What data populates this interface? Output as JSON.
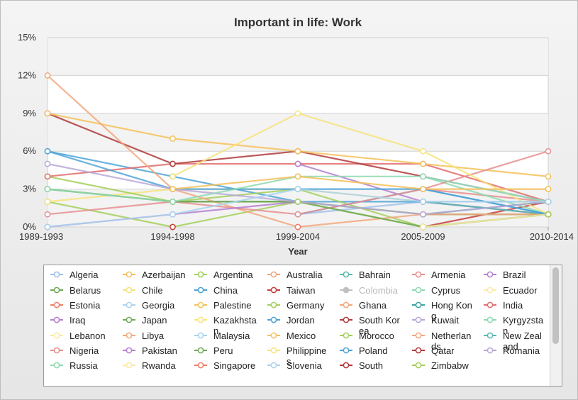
{
  "chart_data": {
    "type": "line",
    "title": "Important in life: Work",
    "xlabel": "Year",
    "ylabel": "",
    "ylim": [
      0,
      15
    ],
    "yticks": [
      "0%",
      "3%",
      "6%",
      "9%",
      "12%",
      "15%"
    ],
    "categories": [
      "1989-1993",
      "1994-1998",
      "1999-2004",
      "2005-2009",
      "2010-2014"
    ],
    "legend_position": "bottom",
    "grid": true,
    "series": [
      {
        "name": "Algeria",
        "color": "#9ec0ea",
        "values": [
          null,
          null,
          1,
          2,
          2
        ]
      },
      {
        "name": "Azerbaijan",
        "color": "#f4c15a",
        "values": [
          null,
          2,
          null,
          null,
          1
        ]
      },
      {
        "name": "Argentina",
        "color": "#a3cf5b",
        "values": [
          2,
          0,
          2,
          1,
          1
        ]
      },
      {
        "name": "Australia",
        "color": "#f2a77c",
        "values": [
          null,
          2,
          null,
          1,
          1
        ]
      },
      {
        "name": "Bahrain",
        "color": "#58b9b0",
        "values": [
          null,
          null,
          null,
          null,
          1
        ]
      },
      {
        "name": "Armenia",
        "color": "#e88e8e",
        "values": [
          null,
          4,
          null,
          3,
          2
        ]
      },
      {
        "name": "Brazil",
        "color": "#b57fd0",
        "values": [
          0,
          1,
          null,
          2,
          1
        ]
      },
      {
        "name": "Belarus",
        "color": "#6faa57",
        "values": [
          3,
          2,
          2,
          null,
          2
        ]
      },
      {
        "name": "Chile",
        "color": "#f6e37c",
        "values": [
          2,
          3,
          3,
          2,
          1
        ]
      },
      {
        "name": "China",
        "color": "#4da3d8",
        "values": [
          6,
          4,
          2,
          2,
          1
        ]
      },
      {
        "name": "Taiwan",
        "color": "#c53d3d",
        "values": [
          null,
          0,
          null,
          0,
          2
        ]
      },
      {
        "name": "Colombia",
        "color": "#c0c0c0",
        "disabled": true,
        "values": [
          null,
          null,
          null,
          null,
          null
        ]
      },
      {
        "name": "Cyprus",
        "color": "#8fd9b0",
        "values": [
          null,
          null,
          null,
          4,
          1
        ]
      },
      {
        "name": "Ecuador",
        "color": "#fbe9a8",
        "values": [
          null,
          null,
          null,
          null,
          1
        ]
      },
      {
        "name": "Estonia",
        "color": "#ef7d6a",
        "values": [
          null,
          3,
          null,
          null,
          1
        ]
      },
      {
        "name": "Georgia",
        "color": "#a9d3ef",
        "values": [
          null,
          3,
          null,
          1,
          1
        ]
      },
      {
        "name": "Palestine",
        "color": "#f4c15a",
        "values": [
          null,
          null,
          4,
          null,
          3
        ]
      },
      {
        "name": "Germany",
        "color": "#a3cf5b",
        "values": [
          4,
          2,
          3,
          0,
          1
        ]
      },
      {
        "name": "Ghana",
        "color": "#f2a77c",
        "values": [
          null,
          null,
          null,
          1,
          1
        ]
      },
      {
        "name": "Hong Kong",
        "color": "#3aa3a3",
        "values": [
          null,
          null,
          null,
          1,
          2
        ]
      },
      {
        "name": "India",
        "color": "#e06d6d",
        "values": [
          4,
          5,
          5,
          5,
          2
        ]
      },
      {
        "name": "Iraq",
        "color": "#b57fd0",
        "values": [
          null,
          null,
          5,
          2,
          1
        ]
      },
      {
        "name": "Japan",
        "color": "#6faa57",
        "values": [
          3,
          2,
          2,
          1,
          1
        ]
      },
      {
        "name": "Kazakhstan",
        "color": "#f6e37c",
        "values": [
          null,
          null,
          null,
          null,
          1
        ]
      },
      {
        "name": "Jordan",
        "color": "#4da3d8",
        "values": [
          null,
          null,
          1,
          3,
          1
        ]
      },
      {
        "name": "South Korea",
        "color": "#b03a3a",
        "values": [
          9,
          5,
          6,
          4,
          2
        ]
      },
      {
        "name": "Kuwait",
        "color": "#b9a8d8",
        "values": [
          null,
          null,
          null,
          null,
          2
        ]
      },
      {
        "name": "Kyrgyzstan",
        "color": "#8fd9b0",
        "values": [
          null,
          null,
          4,
          null,
          2
        ]
      },
      {
        "name": "Lebanon",
        "color": "#fbe9a8",
        "values": [
          null,
          null,
          null,
          null,
          1
        ]
      },
      {
        "name": "Libya",
        "color": "#f2a77c",
        "values": [
          null,
          null,
          null,
          null,
          1
        ]
      },
      {
        "name": "Malaysia",
        "color": "#a9d3ef",
        "values": [
          null,
          null,
          null,
          4,
          2
        ]
      },
      {
        "name": "Mexico",
        "color": "#f4c15a",
        "values": [
          9,
          7,
          6,
          5,
          4
        ]
      },
      {
        "name": "Morocco",
        "color": "#a3cf5b",
        "values": [
          null,
          null,
          2,
          0,
          1
        ]
      },
      {
        "name": "Netherlands",
        "color": "#f2a77c",
        "values": [
          12,
          3,
          0,
          1,
          1
        ]
      },
      {
        "name": "New Zealand",
        "color": "#58b9b0",
        "values": [
          null,
          4,
          null,
          2,
          1
        ]
      },
      {
        "name": "Nigeria",
        "color": "#e88e8e",
        "values": [
          1,
          2,
          1,
          3,
          6
        ]
      },
      {
        "name": "Pakistan",
        "color": "#b57fd0",
        "values": [
          null,
          1,
          2,
          null,
          2
        ]
      },
      {
        "name": "Peru",
        "color": "#6faa57",
        "values": [
          null,
          2,
          2,
          0,
          1
        ]
      },
      {
        "name": "Philippines",
        "color": "#f6e37c",
        "values": [
          null,
          4,
          9,
          6,
          1
        ]
      },
      {
        "name": "Poland",
        "color": "#4da3d8",
        "values": [
          6,
          3,
          3,
          3,
          1
        ]
      },
      {
        "name": "Qatar",
        "color": "#b03a3a",
        "values": [
          null,
          null,
          null,
          null,
          1
        ]
      },
      {
        "name": "Romania",
        "color": "#b9a8d8",
        "values": [
          5,
          3,
          2,
          1,
          2
        ]
      },
      {
        "name": "Russia",
        "color": "#8fd9b0",
        "values": [
          3,
          2,
          4,
          4,
          2
        ]
      },
      {
        "name": "Rwanda",
        "color": "#fbe9a8",
        "values": [
          null,
          null,
          null,
          0,
          1
        ]
      },
      {
        "name": "Singapore",
        "color": "#ef7d6a",
        "values": [
          null,
          null,
          0,
          null,
          1
        ]
      },
      {
        "name": "Slovenia",
        "color": "#a9d3ef",
        "values": [
          0,
          1,
          3,
          2,
          2
        ]
      },
      {
        "name": "South Africa",
        "color": "#f4c15a",
        "values": [
          null,
          3,
          4,
          3,
          3
        ]
      },
      {
        "name": "Zimbabwe",
        "color": "#a3cf5b",
        "values": [
          null,
          null,
          2,
          null,
          1
        ]
      }
    ]
  },
  "legend": {
    "visible_labels": [
      "Algeria",
      "Azerbaijan",
      "Argentina",
      "Australia",
      "Bahrain",
      "Armenia",
      "Brazil",
      "Belarus",
      "Chile",
      "China",
      "Taiwan",
      "Colombia",
      "Cyprus",
      "Ecuador",
      "Estonia",
      "Georgia",
      "Palestine",
      "Germany",
      "Ghana",
      "Hong Kong",
      "India",
      "Iraq",
      "Japan",
      "Kazakhstan",
      "Jordan",
      "South Korea",
      "Kuwait",
      "Kyrgyzstan",
      "Lebanon",
      "Libya",
      "Malaysia",
      "Mexico",
      "Morocco",
      "Netherlands",
      "New Zealand",
      "Nigeria",
      "Pakistan",
      "Peru",
      "Philippines",
      "Poland",
      "Qatar",
      "Romania",
      "Russia",
      "Rwanda",
      "Singapore",
      "Slovenia",
      "South",
      "Zimbabw"
    ]
  }
}
